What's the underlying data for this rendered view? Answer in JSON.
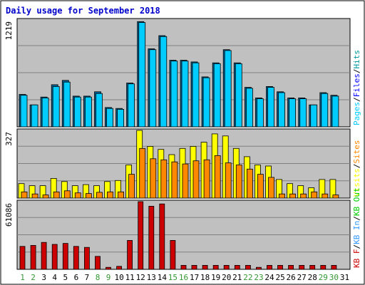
{
  "chart_data": {
    "type": "bar",
    "title": "Daily usage for September 2018",
    "days": [
      "1",
      "2",
      "3",
      "4",
      "5",
      "6",
      "7",
      "8",
      "9",
      "10",
      "11",
      "12",
      "13",
      "14",
      "15",
      "16",
      "17",
      "18",
      "19",
      "20",
      "21",
      "22",
      "23",
      "24",
      "25",
      "26",
      "27",
      "28",
      "29",
      "30",
      "31"
    ],
    "weekend_days": [
      "1",
      "2",
      "8",
      "9",
      "15",
      "16",
      "22",
      "23",
      "29",
      "30"
    ],
    "colors": {
      "title": "#0000cc",
      "background": "#c0c0c0",
      "weekday_label": "#000000",
      "weekend_label": "#339933",
      "pages": "#00ccff",
      "files": "#0000ff",
      "hits": "#009999",
      "visits": "#ffff00",
      "sites": "#ff8800",
      "kbf": "#cc0000",
      "kbin": "#3399ff",
      "kbout": "#00cc00",
      "separator": "#000000"
    },
    "panels": [
      {
        "max_label": "1219",
        "ymax": 1219,
        "legend": [
          {
            "text": "Pages",
            "color": "#00ccff"
          },
          {
            "text": "Files",
            "color": "#0000ff"
          },
          {
            "text": "Hits",
            "color": "#009999"
          }
        ],
        "series": [
          {
            "name": "Hits",
            "color": "#00ccff",
            "values": [
              370,
              250,
              340,
              480,
              530,
              350,
              350,
              400,
              220,
              210,
              500,
              1200,
              890,
              1040,
              760,
              760,
              740,
              570,
              730,
              880,
              730,
              450,
              330,
              460,
              400,
              330,
              330,
              250,
              390,
              360,
              0
            ]
          },
          {
            "name": "Files",
            "color": "#00ccff",
            "values": [
              360,
              250,
              330,
              460,
              510,
              340,
              340,
              380,
              210,
              200,
              490,
              1190,
              880,
              1030,
              750,
              750,
              730,
              560,
              720,
              870,
              720,
              440,
              320,
              450,
              390,
              320,
              320,
              250,
              380,
              350,
              0
            ]
          }
        ]
      },
      {
        "max_label": "327",
        "ymax": 327,
        "legend": [
          {
            "text": "Visits",
            "color": "#ffff00"
          },
          {
            "text": "Sites",
            "color": "#ff8800"
          }
        ],
        "series": [
          {
            "name": "Visits",
            "color": "#ffff00",
            "values": [
              70,
              60,
              60,
              95,
              80,
              60,
              65,
              60,
              80,
              85,
              160,
              327,
              250,
              235,
              210,
              240,
              250,
              270,
              310,
              300,
              240,
              200,
              160,
              155,
              90,
              70,
              60,
              50,
              90,
              90,
              0
            ]
          },
          {
            "name": "Sites",
            "color": "#ff8800",
            "values": [
              30,
              20,
              15,
              30,
              35,
              25,
              22,
              28,
              30,
              30,
              115,
              240,
              190,
              185,
              175,
              165,
              180,
              185,
              205,
              170,
              160,
              140,
              115,
              100,
              20,
              20,
              20,
              30,
              20,
              15,
              0
            ]
          }
        ]
      },
      {
        "max_label": "61086",
        "ymax": 61086,
        "legend": [
          {
            "text": "KB F",
            "color": "#cc0000"
          },
          {
            "text": "KB In",
            "color": "#3399ff"
          },
          {
            "text": "KB Out",
            "color": "#00cc00"
          }
        ],
        "series": [
          {
            "name": "KB F",
            "color": "#cc0000",
            "values": [
              20700,
              21600,
              24300,
              22500,
              23400,
              20700,
              19800,
              11700,
              1800,
              2700,
              26100,
              61086,
              57000,
              59000,
              26100,
              3600,
              3600,
              3600,
              3600,
              3600,
              3600,
              3600,
              1800,
              3600,
              3600,
              3600,
              3600,
              3600,
              3600,
              3600,
              0
            ]
          }
        ]
      }
    ]
  }
}
